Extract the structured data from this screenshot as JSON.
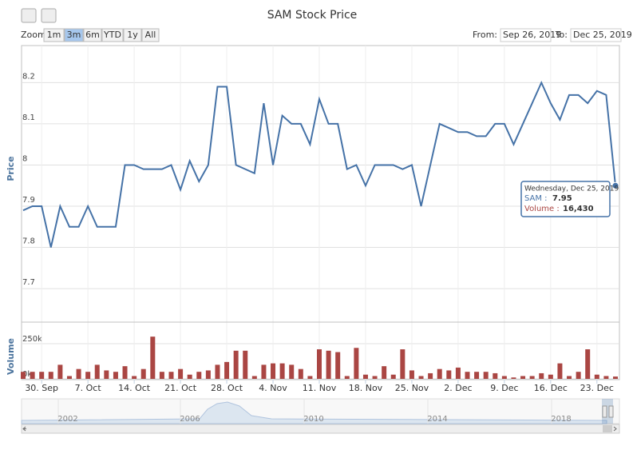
{
  "chart_data": {
    "type": "stock",
    "title": "SAM Stock Price",
    "range_selector": {
      "label": "Zoom",
      "buttons": [
        "1m",
        "3m",
        "6m",
        "YTD",
        "1y",
        "All"
      ],
      "selected": 1,
      "from_label": "From:",
      "from": "Sep 26, 2019",
      "to_label": "To:",
      "to": "Dec 25, 2019"
    },
    "x": [
      0,
      1,
      2,
      3,
      4,
      5,
      6,
      7,
      8,
      9,
      10,
      11,
      12,
      13,
      14,
      15,
      16,
      17,
      18,
      19,
      20,
      21,
      22,
      23,
      24,
      25,
      26,
      27,
      28,
      29,
      30,
      31,
      32,
      33,
      34,
      35,
      36,
      37,
      38,
      39,
      40,
      41,
      42,
      43,
      44,
      45,
      46,
      47,
      48,
      49,
      50,
      51,
      52,
      53,
      54,
      55,
      56,
      57,
      58,
      59,
      60,
      61,
      62,
      63,
      64
    ],
    "xlim": [
      0,
      64
    ],
    "xticks": [
      {
        "value": 2,
        "label": "30. Sep"
      },
      {
        "value": 7,
        "label": "7. Oct"
      },
      {
        "value": 12,
        "label": "14. Oct"
      },
      {
        "value": 17,
        "label": "21. Oct"
      },
      {
        "value": 22,
        "label": "28. Oct"
      },
      {
        "value": 27,
        "label": "4. Nov"
      },
      {
        "value": 32,
        "label": "11. Nov"
      },
      {
        "value": 37,
        "label": "18. Nov"
      },
      {
        "value": 42,
        "label": "25. Nov"
      },
      {
        "value": 47,
        "label": "2. Dec"
      },
      {
        "value": 52,
        "label": "9. Dec"
      },
      {
        "value": 57,
        "label": "16. Dec"
      },
      {
        "value": 62,
        "label": "23. Dec"
      }
    ],
    "series": [
      {
        "name": "SAM",
        "color": "#4572a7",
        "axis": "y",
        "values": [
          7.89,
          7.9,
          7.9,
          7.8,
          7.9,
          7.85,
          7.85,
          7.9,
          7.85,
          7.85,
          7.85,
          8.0,
          8.0,
          7.99,
          7.99,
          7.99,
          8.0,
          7.94,
          8.01,
          7.96,
          8.0,
          8.19,
          8.19,
          8.0,
          7.99,
          7.98,
          8.15,
          8.0,
          8.12,
          8.1,
          8.1,
          8.05,
          8.16,
          8.1,
          8.1,
          7.99,
          8.0,
          7.95,
          8.0,
          8.0,
          8.0,
          7.99,
          8.0,
          7.9,
          8.0,
          8.1,
          8.09,
          8.08,
          8.08,
          8.07,
          8.07,
          8.1,
          8.1,
          8.05,
          8.1,
          8.15,
          8.2,
          8.15,
          8.11,
          8.17,
          8.17,
          8.15,
          8.18,
          8.17,
          7.95
        ]
      },
      {
        "name": "Volume",
        "color": "#aa4643",
        "axis": "y2",
        "values": [
          50000,
          50000,
          50000,
          50000,
          100000,
          20000,
          70000,
          50000,
          100000,
          60000,
          50000,
          90000,
          20000,
          70000,
          300000,
          50000,
          50000,
          70000,
          30000,
          50000,
          60000,
          100000,
          120000,
          200000,
          200000,
          20000,
          100000,
          110000,
          110000,
          100000,
          70000,
          20000,
          210000,
          200000,
          190000,
          20000,
          220000,
          30000,
          20000,
          90000,
          30000,
          210000,
          60000,
          20000,
          40000,
          70000,
          60000,
          80000,
          50000,
          50000,
          50000,
          40000,
          20000,
          10000,
          20000,
          20000,
          40000,
          30000,
          110000,
          20000,
          50000,
          210000,
          30000,
          20000,
          16430
        ]
      }
    ],
    "ylabel": "Price",
    "ylim": [
      7.64,
      8.29
    ],
    "yticks": [
      7.7,
      7.8,
      7.9,
      8,
      8.1,
      8.2
    ],
    "y2label": "Volume",
    "y2lim": [
      0,
      335000
    ],
    "y2ticks": [
      {
        "value": 0,
        "label": "0k"
      },
      {
        "value": 250000,
        "label": "250k"
      }
    ],
    "grid": true,
    "tooltip": {
      "date": "Wednesday, Dec 25, 2019",
      "price_label": "SAM :",
      "price": "7.95",
      "volume_label": "Volume :",
      "volume": "16,430"
    },
    "navigator_years": [
      "2002",
      "2006",
      "2010",
      "2014",
      "2018"
    ]
  }
}
